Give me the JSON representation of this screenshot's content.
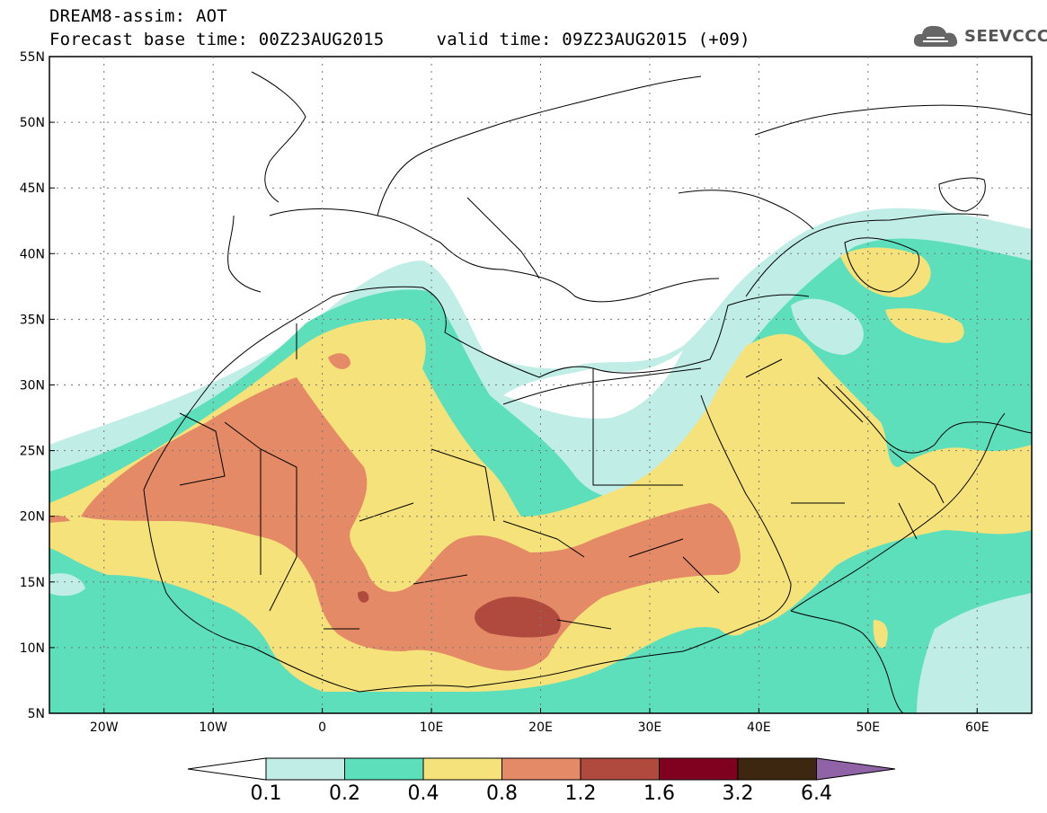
{
  "title": {
    "line1": "DREAM8-assim: AOT",
    "line2": "Forecast base time: 00Z23AUG2015     valid time: 09Z23AUG2015 (+09)"
  },
  "logo": {
    "text": "SEEVCCC",
    "icon": "cloud-icon"
  },
  "map": {
    "lon_range": [
      -25,
      65
    ],
    "lat_range": [
      5,
      55
    ],
    "lon_ticks": [
      {
        "value": -20,
        "label": "20W"
      },
      {
        "value": -10,
        "label": "10W"
      },
      {
        "value": 0,
        "label": "0"
      },
      {
        "value": 10,
        "label": "10E"
      },
      {
        "value": 20,
        "label": "20E"
      },
      {
        "value": 30,
        "label": "30E"
      },
      {
        "value": 40,
        "label": "40E"
      },
      {
        "value": 50,
        "label": "50E"
      },
      {
        "value": 60,
        "label": "60E"
      }
    ],
    "lat_ticks": [
      {
        "value": 5,
        "label": "5N"
      },
      {
        "value": 10,
        "label": "10N"
      },
      {
        "value": 15,
        "label": "15N"
      },
      {
        "value": 20,
        "label": "20N"
      },
      {
        "value": 25,
        "label": "25N"
      },
      {
        "value": 30,
        "label": "30N"
      },
      {
        "value": 35,
        "label": "35N"
      },
      {
        "value": 40,
        "label": "40N"
      },
      {
        "value": 45,
        "label": "45N"
      },
      {
        "value": 50,
        "label": "50N"
      },
      {
        "value": 55,
        "label": "55N"
      }
    ]
  },
  "legend": {
    "labels": [
      "0.1",
      "0.2",
      "0.4",
      "0.8",
      "1.2",
      "1.6",
      "3.2",
      "6.4"
    ],
    "colors": [
      "#ffffff",
      "#c0eee6",
      "#5ddfbb",
      "#f6e27a",
      "#e48a66",
      "#b04a3e",
      "#800020",
      "#3d2710",
      "#8f63a6"
    ]
  }
}
